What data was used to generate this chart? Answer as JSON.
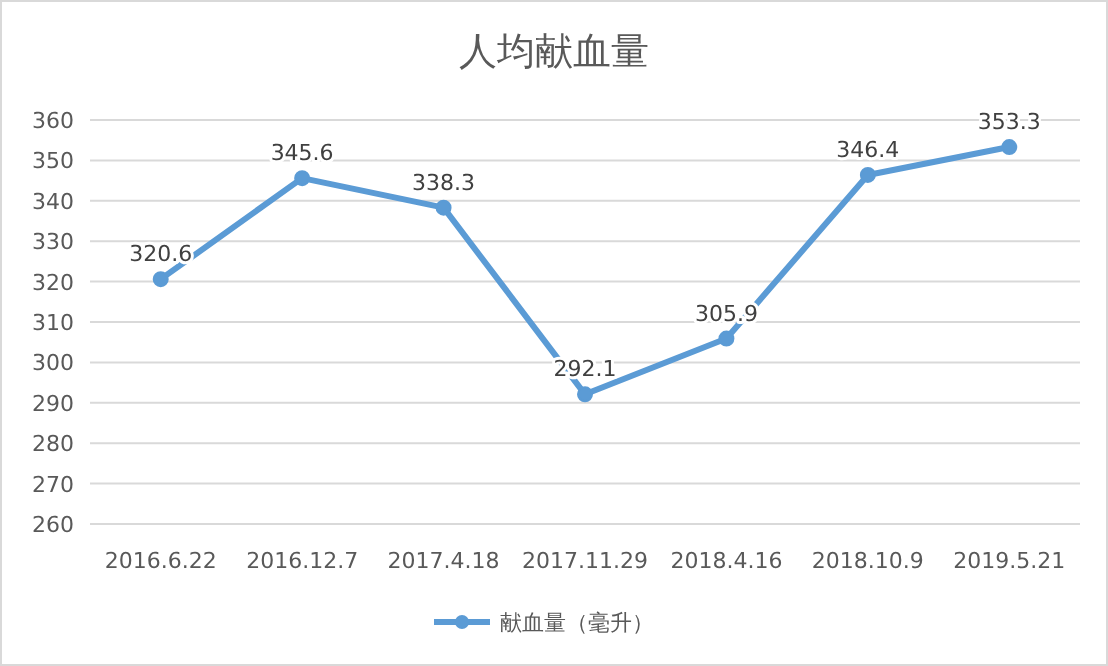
{
  "chart_data": {
    "type": "line",
    "title": "人均献血量",
    "categories": [
      "2016.6.22",
      "2016.12.7",
      "2017.4.18",
      "2017.11.29",
      "2018.4.16",
      "2018.10.9",
      "2019.5.21"
    ],
    "series": [
      {
        "name": "献血量（毫升）",
        "color": "#5b9bd5",
        "values": [
          320.6,
          345.6,
          338.3,
          292.1,
          305.9,
          346.4,
          353.3
        ]
      }
    ],
    "ylim": [
      260,
      360
    ],
    "yticks": [
      260,
      270,
      280,
      290,
      300,
      310,
      320,
      330,
      340,
      350,
      360
    ],
    "grid": "y",
    "legend": "bottom",
    "marker": "circle",
    "line_style": "solid",
    "data_labels": true
  }
}
